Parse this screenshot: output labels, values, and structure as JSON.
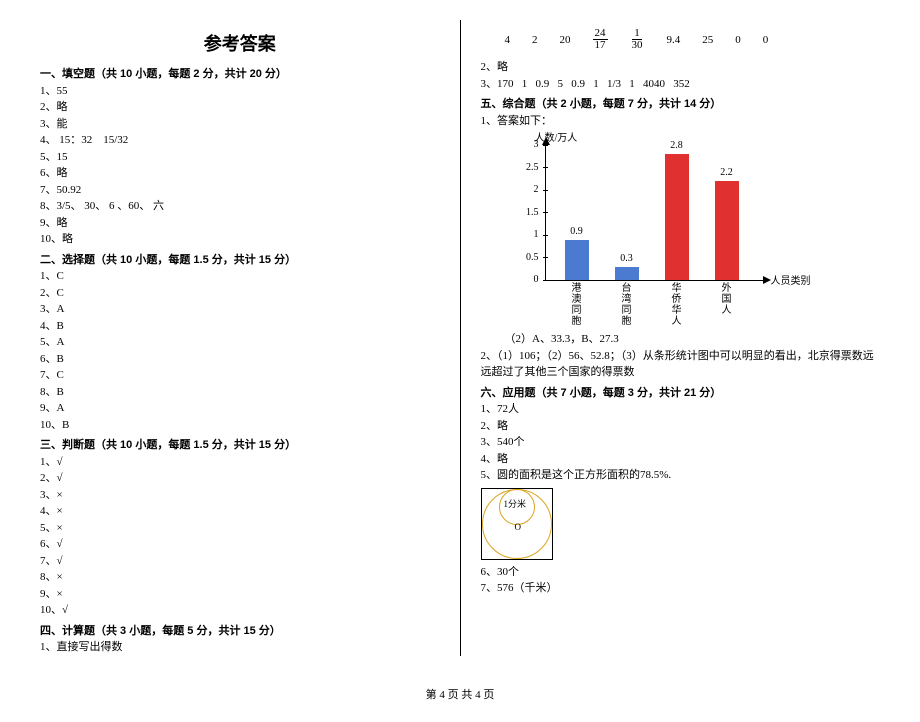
{
  "title": "参考答案",
  "section1": "一、填空题（共 10 小题，每题 2 分，共计 20 分）",
  "a1": [
    "1、55",
    "2、略",
    "3、能",
    "4、 15：32    15/32",
    "5、15",
    "6、略",
    "7、50.92",
    "8、3/5、 30、 6 、60、 六",
    "9、略",
    "10、略"
  ],
  "section2": "二、选择题（共 10 小题，每题 1.5 分，共计 15 分）",
  "a2": [
    "1、C",
    "2、C",
    "3、A",
    "4、B",
    "5、A",
    "6、B",
    "7、C",
    "8、B",
    "9、A",
    "10、B"
  ],
  "section3": "三、判断题（共 10 小题，每题 1.5 分，共计 15 分）",
  "a3": [
    "1、√",
    "2、√",
    "3、×",
    "4、×",
    "5、×",
    "6、√",
    "7、√",
    "8、×",
    "9、×",
    "10、√"
  ],
  "section4": "四、计算题（共 3 小题，每题 5 分，共计 15 分）",
  "a4_1": "1、直接写出得数",
  "nums": [
    "4",
    "2",
    "20"
  ],
  "frac1": {
    "t": "24",
    "b": "17"
  },
  "frac2": {
    "t": "1",
    "b": "30"
  },
  "nums2": [
    "9.4",
    "25",
    "0",
    "0"
  ],
  "a4_2": "2、略",
  "a4_3": "3、170   1   0.9   5   0.9   1   1/3   1   4040   352",
  "section5": "五、综合题（共 2 小题，每题 7 分，共计 14 分）",
  "a5_1": "1、答案如下：",
  "chart": {
    "ylabel": "人数/万人",
    "xlabel": "人员类别",
    "ymax": 3,
    "ystep": 0.5,
    "yticks": [
      "0",
      "0.5",
      "1",
      "1.5",
      "2",
      "2.5",
      "3"
    ],
    "cats": [
      {
        "label": "港澳同胞",
        "val": 0.9,
        "color": "#4a7bd0"
      },
      {
        "label": "台湾同胞",
        "val": 0.3,
        "color": "#4a7bd0"
      },
      {
        "label": "华侨华人",
        "val": 2.8,
        "color": "#e03030"
      },
      {
        "label": "外国人",
        "val": 2.2,
        "color": "#e03030"
      }
    ]
  },
  "a5_1b": "（2）A、33.3，B、27.3",
  "a5_2": "2、（1）106；（2）56、52.8；（3）从条形统计图中可以明显的看出，北京得票数远远超过了其他三个国家的得票数",
  "section6": "六、应用题（共 7 小题，每题 3 分，共计 21 分）",
  "a6": [
    "1、72人",
    "2、略",
    "3、540个",
    "4、略",
    "5、圆的面积是这个正方形面积的78.5%."
  ],
  "diag_text": "1分米",
  "a6b": [
    "6、30个",
    "7、576（千米）"
  ],
  "footer": "第 4 页 共 4 页"
}
